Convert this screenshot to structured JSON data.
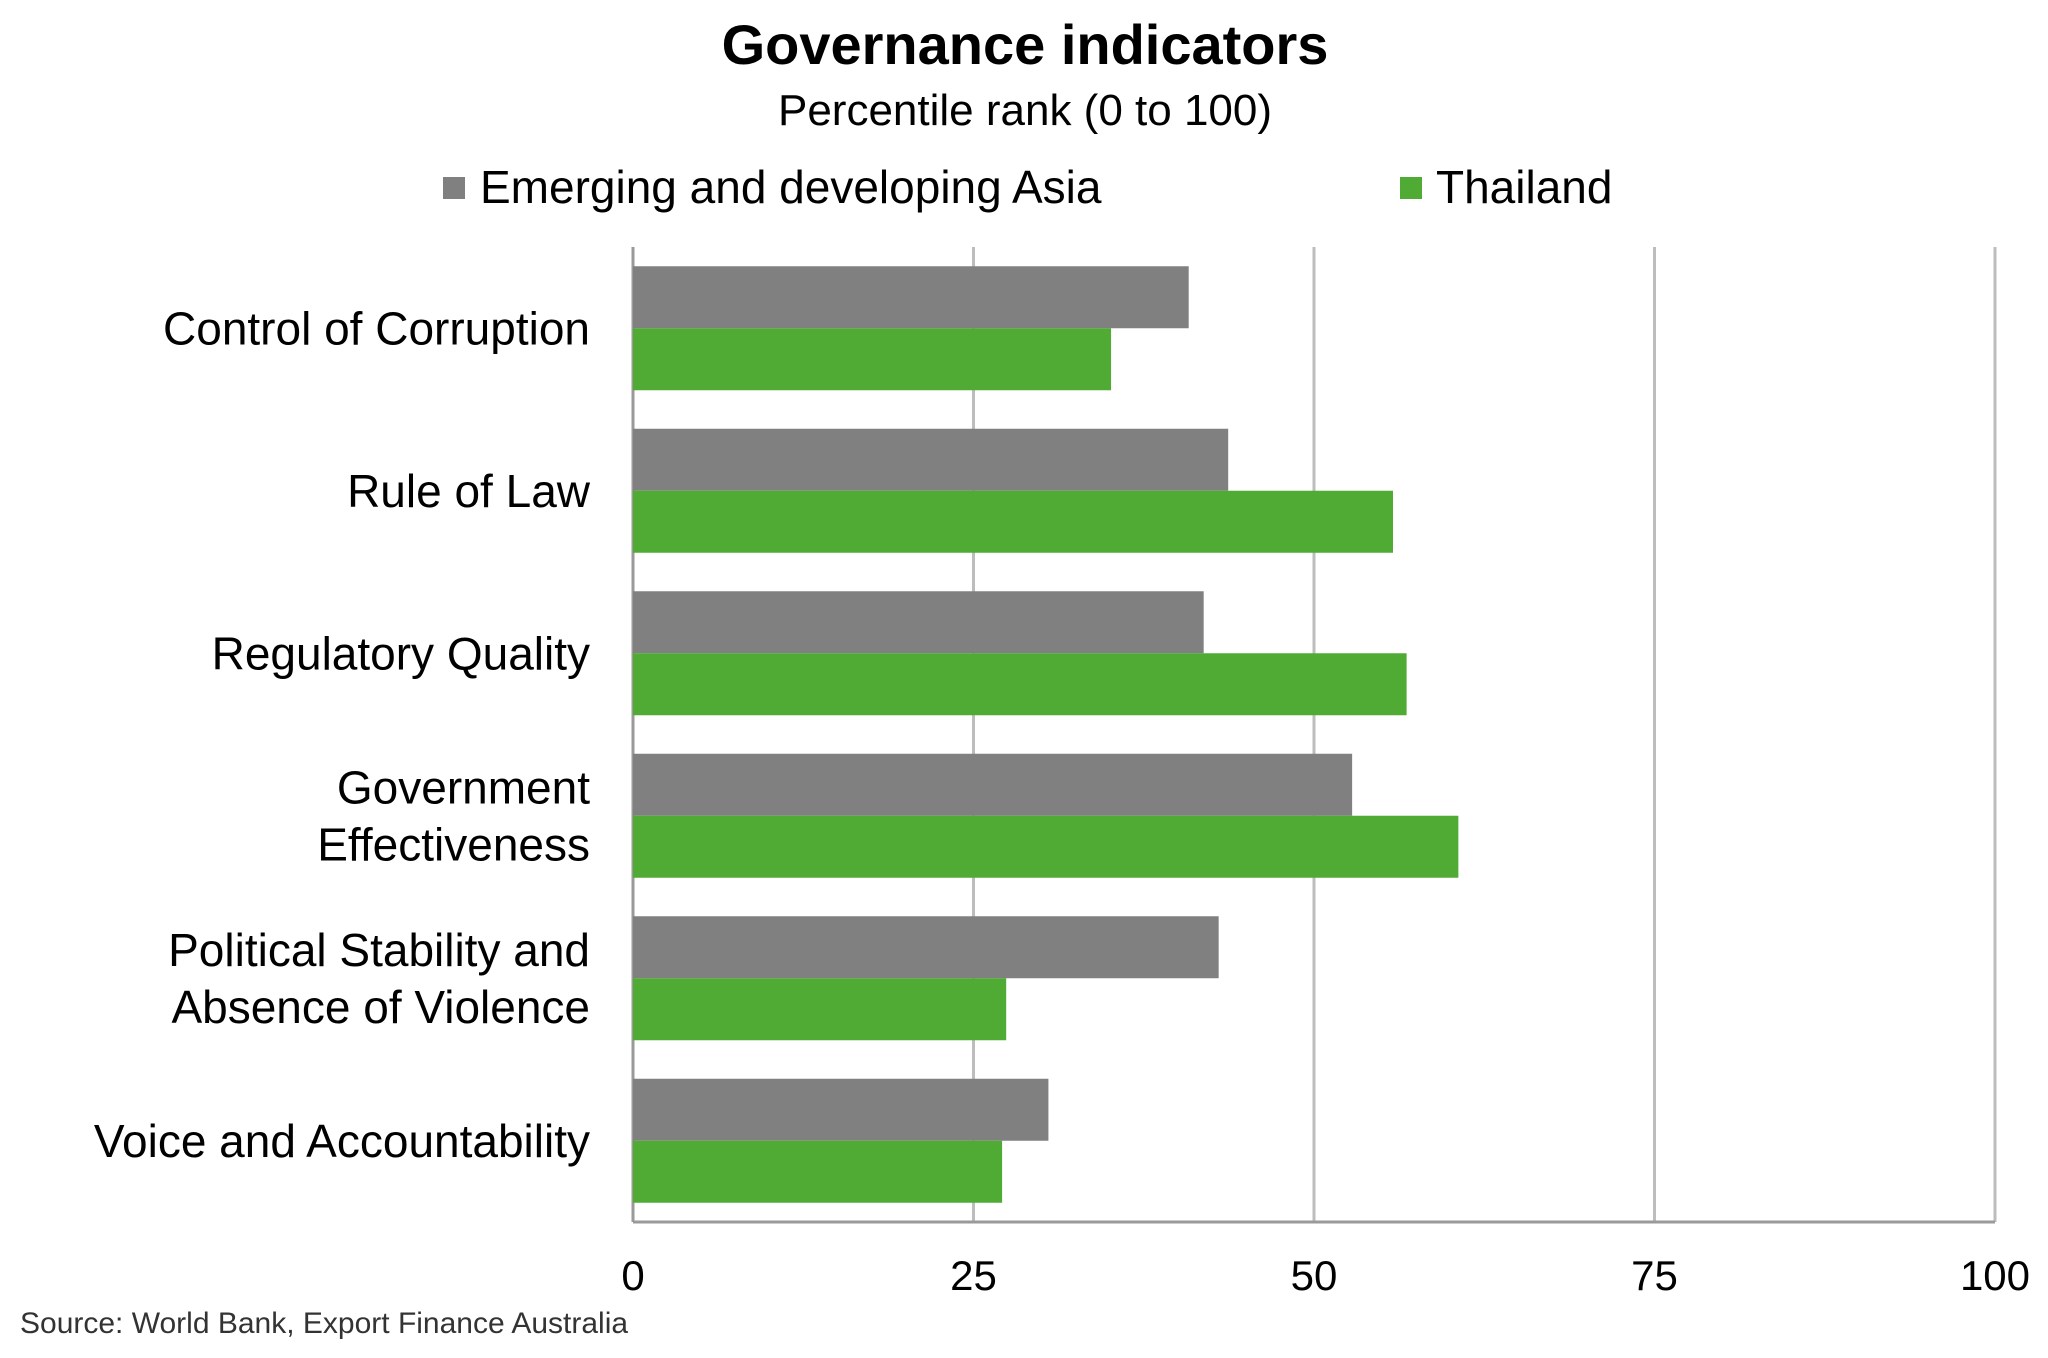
{
  "chart_data": {
    "type": "bar",
    "orientation": "horizontal",
    "title": "Governance indicators",
    "subtitle": "Percentile rank (0 to 100)",
    "categories": [
      [
        "Control of Corruption"
      ],
      [
        "Rule of Law"
      ],
      [
        "Regulatory Quality"
      ],
      [
        "Government",
        "Effectiveness"
      ],
      [
        "Political Stability and",
        "Absence of Violence"
      ],
      [
        "Voice and Accountability"
      ]
    ],
    "series": [
      {
        "name": "Emerging and developing Asia",
        "color": "#808080",
        "values": [
          40.8,
          43.7,
          41.9,
          52.8,
          43.0,
          30.5
        ]
      },
      {
        "name": "Thailand",
        "color": "#4fab33",
        "values": [
          35.1,
          55.8,
          56.8,
          60.6,
          27.4,
          27.1
        ]
      }
    ],
    "xlim": [
      0,
      100
    ],
    "xticks": [
      "0",
      "25",
      "50",
      "75",
      "100"
    ],
    "grid": true,
    "legend_position": "top",
    "source": "Source: World Bank, Export Finance Australia"
  }
}
